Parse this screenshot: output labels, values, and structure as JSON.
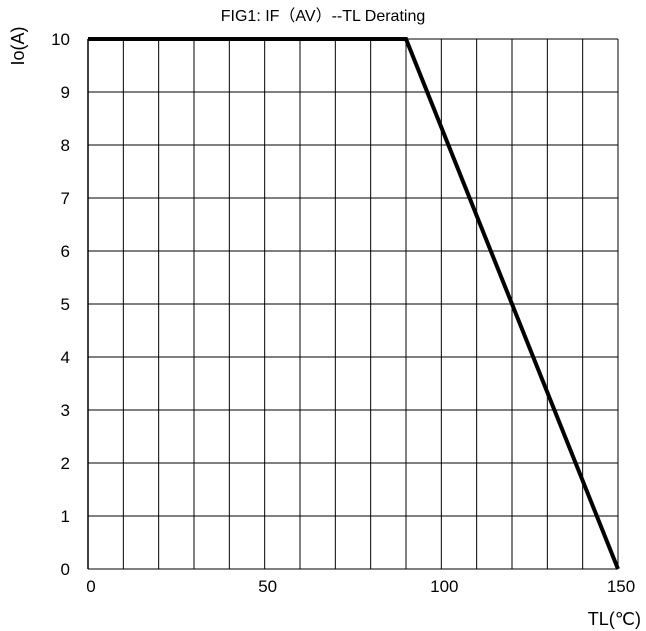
{
  "chart_data": {
    "type": "line",
    "title": "FIG1: IF（AV）--TL  Derating",
    "xlabel": "TL(℃)",
    "ylabel": "Io(A)",
    "xlim": [
      0,
      150
    ],
    "ylim": [
      0,
      10
    ],
    "x_ticks": [
      0,
      50,
      100,
      150
    ],
    "y_ticks": [
      0,
      1,
      2,
      3,
      4,
      5,
      6,
      7,
      8,
      9,
      10
    ],
    "x_grid_step": 10,
    "y_grid_step": 1,
    "grid": true,
    "series": [
      {
        "x": [
          0,
          90,
          150
        ],
        "y": [
          10,
          10,
          0
        ]
      }
    ],
    "colors": {
      "line": "#000000",
      "grid": "#000000",
      "background": "#ffffff"
    }
  }
}
